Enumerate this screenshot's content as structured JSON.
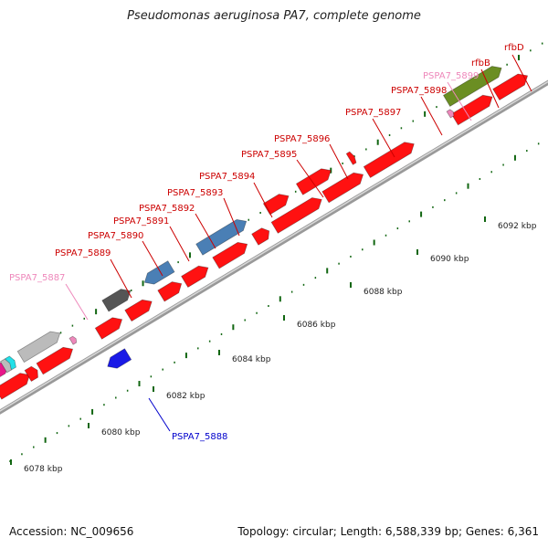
{
  "title": "Pseudomonas aeruginosa PA7, complete genome",
  "footer": {
    "accession": "Accession: NC_009656",
    "summary": "Topology: circular; Length: 6,588,339 bp; Genes: 6,361"
  },
  "colors": {
    "gene_red": "#ff1111",
    "gene_blue": "#4a7fb5",
    "gene_darkblue": "#1a1ae6",
    "gene_olive": "#6b8e23",
    "gene_gray": "#555555",
    "gene_lightgray": "#bbbbbb",
    "gene_magenta": "#e8188a",
    "gene_cyan": "#22e0e8",
    "label_red": "#cc0000",
    "label_pink": "#ee88bb",
    "label_blue": "#0000cc",
    "tick_green": "#116611"
  },
  "scale_labels": [
    "6078 kbp",
    "6080 kbp",
    "6082 kbp",
    "6084 kbp",
    "6086 kbp",
    "6088 kbp",
    "6090 kbp",
    "6092 kbp"
  ],
  "gene_labels": [
    {
      "text": "PSPA7_5887",
      "color": "pink"
    },
    {
      "text": "PSPA7_5888",
      "color": "blue"
    },
    {
      "text": "PSPA7_5889",
      "color": "red"
    },
    {
      "text": "PSPA7_5890",
      "color": "red"
    },
    {
      "text": "PSPA7_5891",
      "color": "red"
    },
    {
      "text": "PSPA7_5892",
      "color": "red"
    },
    {
      "text": "PSPA7_5893",
      "color": "red"
    },
    {
      "text": "PSPA7_5894",
      "color": "red"
    },
    {
      "text": "PSPA7_5895",
      "color": "red"
    },
    {
      "text": "PSPA7_5896",
      "color": "red"
    },
    {
      "text": "PSPA7_5897",
      "color": "red"
    },
    {
      "text": "PSPA7_5898",
      "color": "red"
    },
    {
      "text": "PSPA7_5899",
      "color": "pink"
    },
    {
      "text": "rfbB",
      "color": "red"
    },
    {
      "text": "rfbD",
      "color": "red"
    }
  ]
}
